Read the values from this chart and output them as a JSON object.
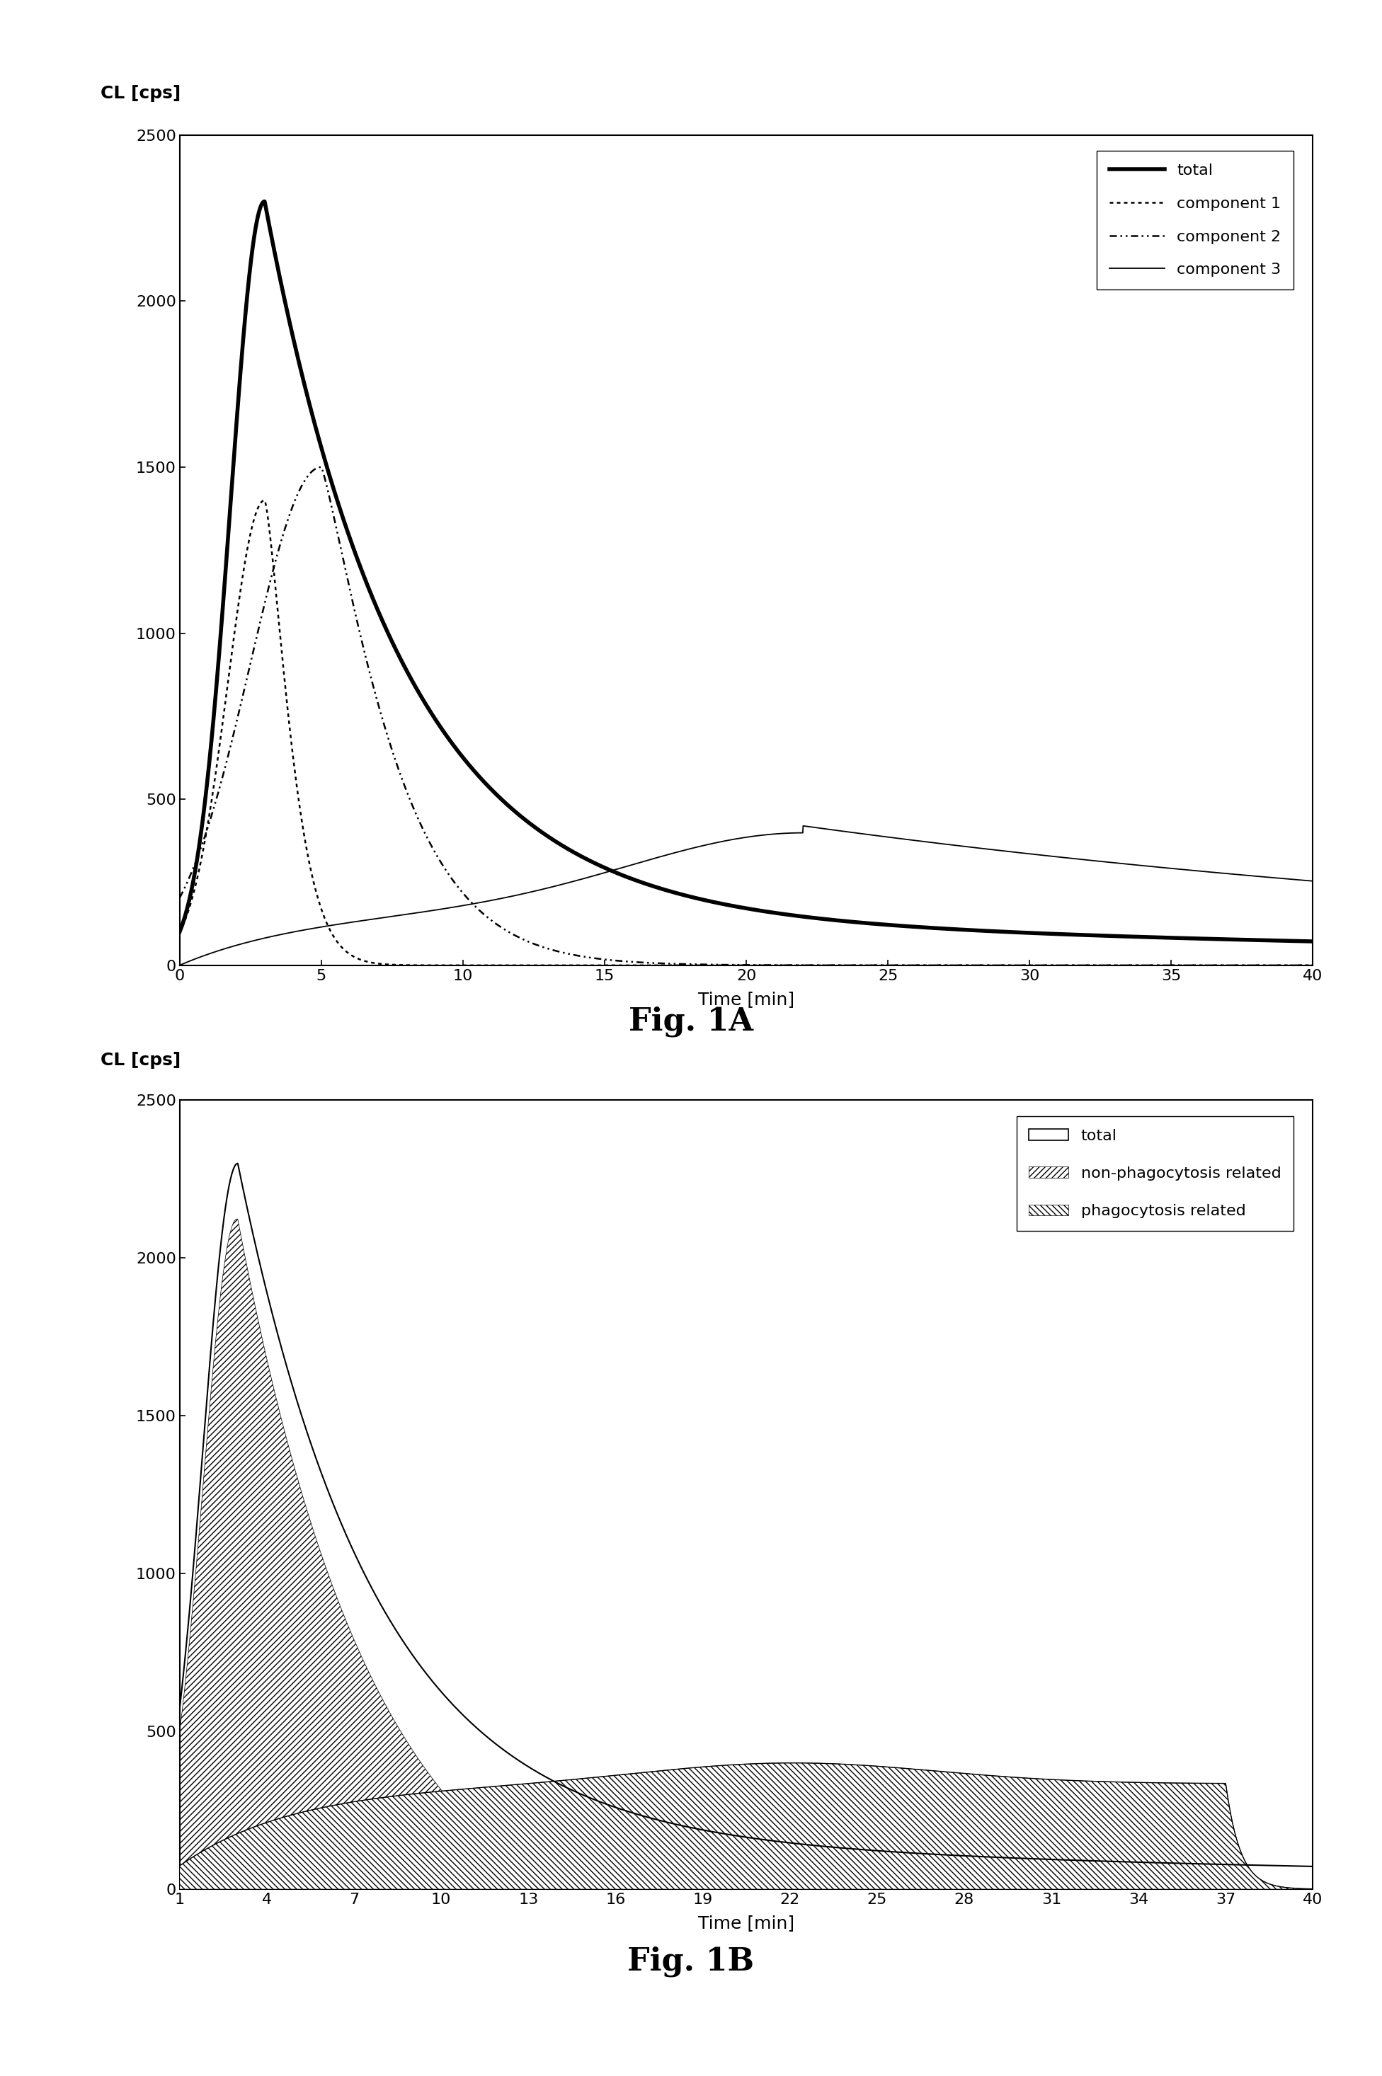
{
  "fig1a_title": "Fig. 1A",
  "fig1b_title": "Fig. 1B",
  "ylabel": "CL [cps]",
  "xlabel": "Time [min]",
  "ylim": [
    0,
    2500
  ],
  "xlim_a": [
    0,
    40
  ],
  "xlim_b": [
    1,
    40
  ],
  "xticks_a": [
    0,
    5,
    10,
    15,
    20,
    25,
    30,
    35,
    40
  ],
  "yticks": [
    0,
    500,
    1000,
    1500,
    2000,
    2500
  ],
  "xticks_b": [
    1,
    4,
    7,
    10,
    13,
    16,
    19,
    22,
    25,
    28,
    31,
    34,
    37,
    40
  ],
  "legend_a": [
    "total",
    "component 1",
    "component 2",
    "component 3"
  ],
  "legend_b": [
    "total",
    "non-phagocytosis related",
    "phagocytosis related"
  ],
  "background": "#ffffff",
  "line_color": "#000000",
  "total_peak": 2300,
  "total_peak_t": 3.0,
  "comp1_peak": 1400,
  "comp1_peak_t": 3.0,
  "comp2_peak": 1500,
  "comp2_peak_t": 5.0,
  "comp3_peak": 420,
  "comp3_peak_t": 22.0
}
